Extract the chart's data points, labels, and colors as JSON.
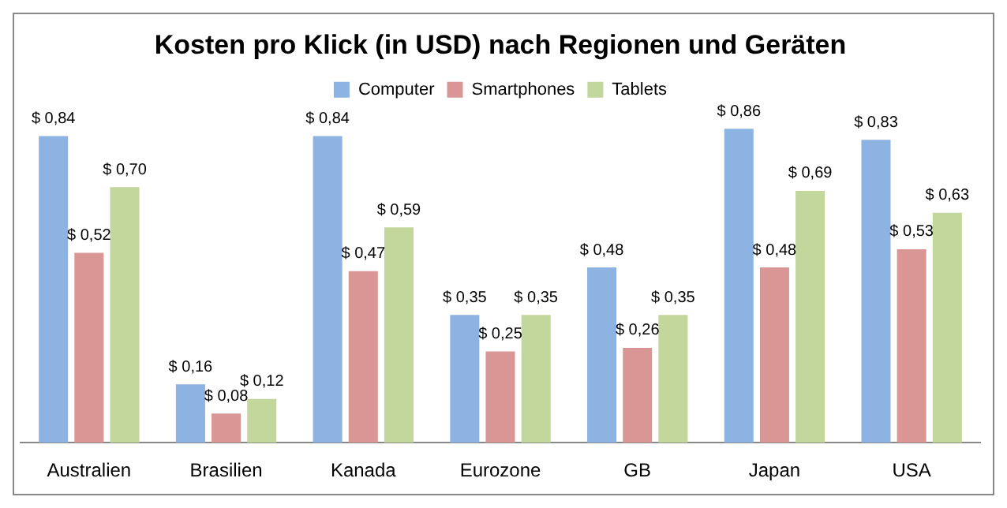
{
  "chart_data": {
    "type": "bar",
    "title": "Kosten pro Klick (in USD) nach Regionen und Geräten",
    "categories": [
      "Australien",
      "Brasilien",
      "Kanada",
      "Eurozone",
      "GB",
      "Japan",
      "USA"
    ],
    "series": [
      {
        "name": "Computer",
        "color": "#8db3e2",
        "values": [
          0.84,
          0.16,
          0.84,
          0.35,
          0.48,
          0.86,
          0.83
        ],
        "value_labels": [
          "$ 0,84",
          "$ 0,16",
          "$ 0,84",
          "$ 0,35",
          "$ 0,48",
          "$ 0,86",
          "$ 0,83"
        ]
      },
      {
        "name": "Smartphones",
        "color": "#d99694",
        "values": [
          0.52,
          0.08,
          0.47,
          0.25,
          0.26,
          0.48,
          0.53
        ],
        "value_labels": [
          "$ 0,52",
          "$ 0,08",
          "$ 0,47",
          "$ 0,25",
          "$ 0,26",
          "$ 0,48",
          "$ 0,53"
        ]
      },
      {
        "name": "Tablets",
        "color": "#c3d69b",
        "values": [
          0.7,
          0.12,
          0.59,
          0.35,
          0.35,
          0.69,
          0.63
        ],
        "value_labels": [
          "$ 0,70",
          "$ 0,12",
          "$ 0,59",
          "$ 0,35",
          "$ 0,35",
          "$ 0,69",
          "$ 0,63"
        ]
      }
    ],
    "legend": "top",
    "grid": false
  }
}
